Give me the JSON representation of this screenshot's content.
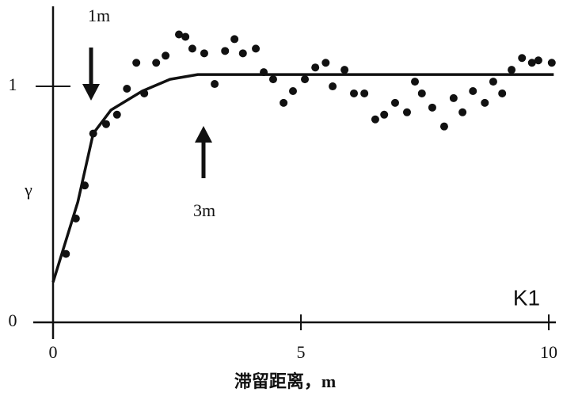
{
  "chart_data": {
    "type": "scatter",
    "xlabel": "滞留距离，m",
    "ylabel": "γ",
    "annotations": [
      "1m",
      "3m",
      "K1"
    ],
    "xlim": [
      0,
      10.1
    ],
    "ylim": [
      0,
      1.33
    ],
    "xticks": [
      0,
      5,
      10
    ],
    "yticks": [
      0,
      1
    ],
    "series": [
      {
        "type": "scatter",
        "color": "#111",
        "x": [
          0.26,
          0.46,
          0.64,
          0.81,
          1.07,
          1.29,
          1.49,
          1.68,
          1.84,
          2.08,
          2.27,
          2.54,
          2.67,
          2.81,
          3.05,
          3.26,
          3.47,
          3.66,
          3.83,
          4.09,
          4.25,
          4.44,
          4.65,
          4.84,
          5.08,
          5.29,
          5.5,
          5.64,
          5.88,
          6.07,
          6.28,
          6.5,
          6.68,
          6.9,
          7.14,
          7.3,
          7.44,
          7.65,
          7.89,
          8.08,
          8.26,
          8.47,
          8.71,
          8.88,
          9.06,
          9.25,
          9.46,
          9.66,
          9.79,
          10.06
        ],
        "values": [
          0.29,
          0.44,
          0.58,
          0.8,
          0.84,
          0.88,
          0.99,
          1.1,
          0.97,
          1.1,
          1.13,
          1.22,
          1.21,
          1.16,
          1.14,
          1.01,
          1.15,
          1.2,
          1.14,
          1.16,
          1.06,
          1.03,
          0.93,
          0.98,
          1.03,
          1.08,
          1.1,
          1.0,
          1.07,
          0.97,
          0.97,
          0.86,
          0.88,
          0.93,
          0.89,
          1.02,
          0.97,
          0.91,
          0.83,
          0.95,
          0.89,
          0.98,
          0.93,
          1.02,
          0.97,
          1.07,
          1.12,
          1.1,
          1.11,
          1.1
        ]
      },
      {
        "type": "line",
        "color": "#111",
        "x": [
          0,
          0.5,
          0.81,
          1.17,
          1.8,
          2.36,
          2.92,
          10.1
        ],
        "values": [
          0.17,
          0.51,
          0.8,
          0.9,
          0.98,
          1.03,
          1.05,
          1.05
        ]
      }
    ]
  }
}
